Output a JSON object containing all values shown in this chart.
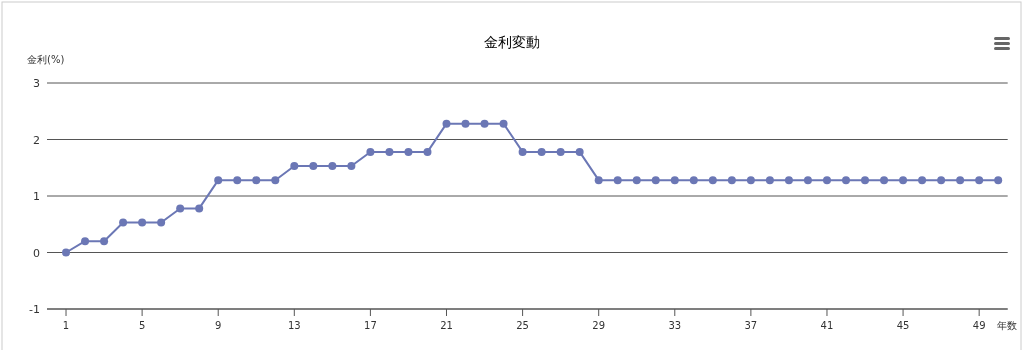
{
  "chart_data": {
    "type": "line",
    "title": "金利変動",
    "xlabel": "年数",
    "ylabel": "金利(%)",
    "x": [
      1,
      2,
      3,
      4,
      5,
      6,
      7,
      8,
      9,
      10,
      11,
      12,
      13,
      14,
      15,
      16,
      17,
      18,
      19,
      20,
      21,
      22,
      23,
      24,
      25,
      26,
      27,
      28,
      29,
      30,
      31,
      32,
      33,
      34,
      35,
      36,
      37,
      38,
      39,
      40,
      41,
      42,
      43,
      44,
      45,
      46,
      47,
      48,
      49,
      50
    ],
    "values": [
      0,
      0.2,
      0.2,
      0.53,
      0.53,
      0.53,
      0.78,
      0.78,
      1.28,
      1.28,
      1.28,
      1.28,
      1.53,
      1.53,
      1.53,
      1.53,
      1.78,
      1.78,
      1.78,
      1.78,
      2.28,
      2.28,
      2.28,
      2.28,
      1.78,
      1.78,
      1.78,
      1.78,
      1.28,
      1.28,
      1.28,
      1.28,
      1.28,
      1.28,
      1.28,
      1.28,
      1.28,
      1.28,
      1.28,
      1.28,
      1.28,
      1.28,
      1.28,
      1.28,
      1.28,
      1.28,
      1.28,
      1.28,
      1.28,
      1.28
    ],
    "color": "#6b77b5",
    "xlim": [
      0,
      50.5
    ],
    "xticks": [
      1,
      5,
      9,
      13,
      17,
      21,
      25,
      29,
      33,
      37,
      41,
      45,
      49
    ],
    "ylim": [
      -1,
      3
    ],
    "yticks": [
      -1,
      0,
      1,
      2,
      3
    ],
    "grid": "y",
    "marker": "circle",
    "line_style": "solid"
  }
}
